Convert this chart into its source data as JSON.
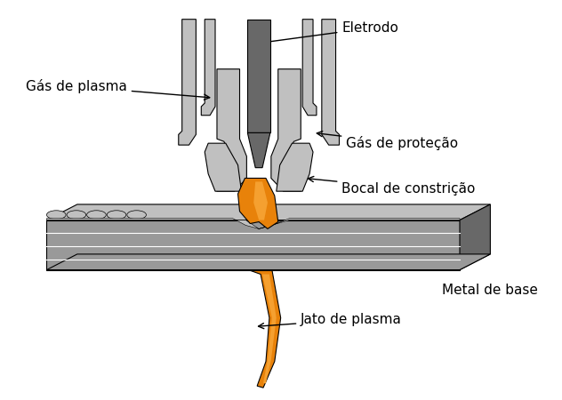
{
  "background_color": "#ffffff",
  "gray_light": "#c0c0c0",
  "gray_mid": "#999999",
  "gray_dark": "#686868",
  "gray_darker": "#505050",
  "orange": "#E8820A",
  "orange_light": "#F5A030",
  "labels": {
    "eletrodo": "Eletrodo",
    "gas_plasma": "Gás de plasma",
    "gas_protecao": "Gás de proteção",
    "bocal": "Bocal de constrição",
    "metal": "Metal de base",
    "jato": "Jato de plasma"
  },
  "font_size": 11
}
